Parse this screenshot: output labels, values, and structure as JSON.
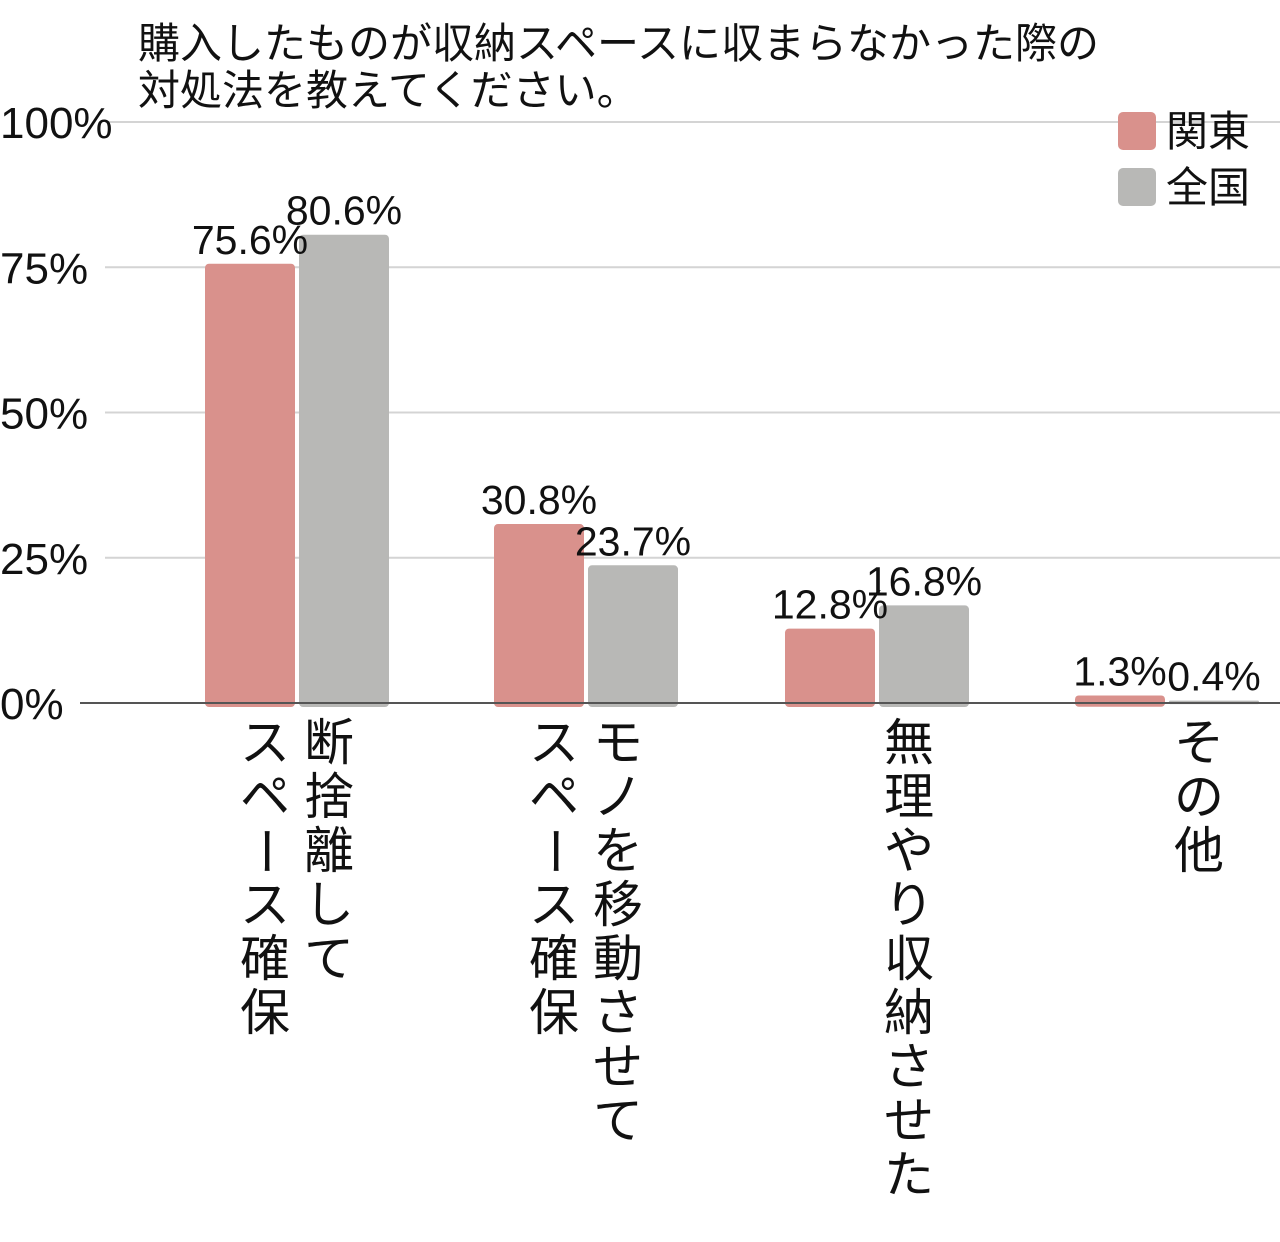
{
  "chart_data": {
    "type": "bar",
    "title_lines": [
      "購入したものが収納スペースに収まらなかった際の",
      "対処法を教えてください。"
    ],
    "categories": [
      [
        "断捨離して",
        "スペース確保"
      ],
      [
        "モノを移動させて",
        "スペース確保"
      ],
      [
        "無理やり収納させた"
      ],
      [
        "その他"
      ]
    ],
    "series": [
      {
        "name": "関東",
        "values": [
          75.6,
          30.8,
          12.8,
          1.3
        ],
        "labels": [
          "75.6%",
          "30.8%",
          "12.8%",
          "1.3%"
        ],
        "color": "#d9918c"
      },
      {
        "name": "全国",
        "values": [
          80.6,
          23.7,
          16.8,
          0.4
        ],
        "labels": [
          "80.6%",
          "23.7%",
          "16.8%",
          "0.4%"
        ],
        "color": "#b8b8b6"
      }
    ],
    "y_ticks": [
      {
        "value": 0,
        "label": "0%"
      },
      {
        "value": 25,
        "label": "25%"
      },
      {
        "value": 50,
        "label": "50%"
      },
      {
        "value": 75,
        "label": "75%"
      },
      {
        "value": 100,
        "label": "100%"
      }
    ],
    "ylim": [
      0,
      100
    ],
    "grid": true,
    "legend_position": "top-right",
    "gridline_color": "#d4d4d4",
    "axis_color": "#555555"
  }
}
